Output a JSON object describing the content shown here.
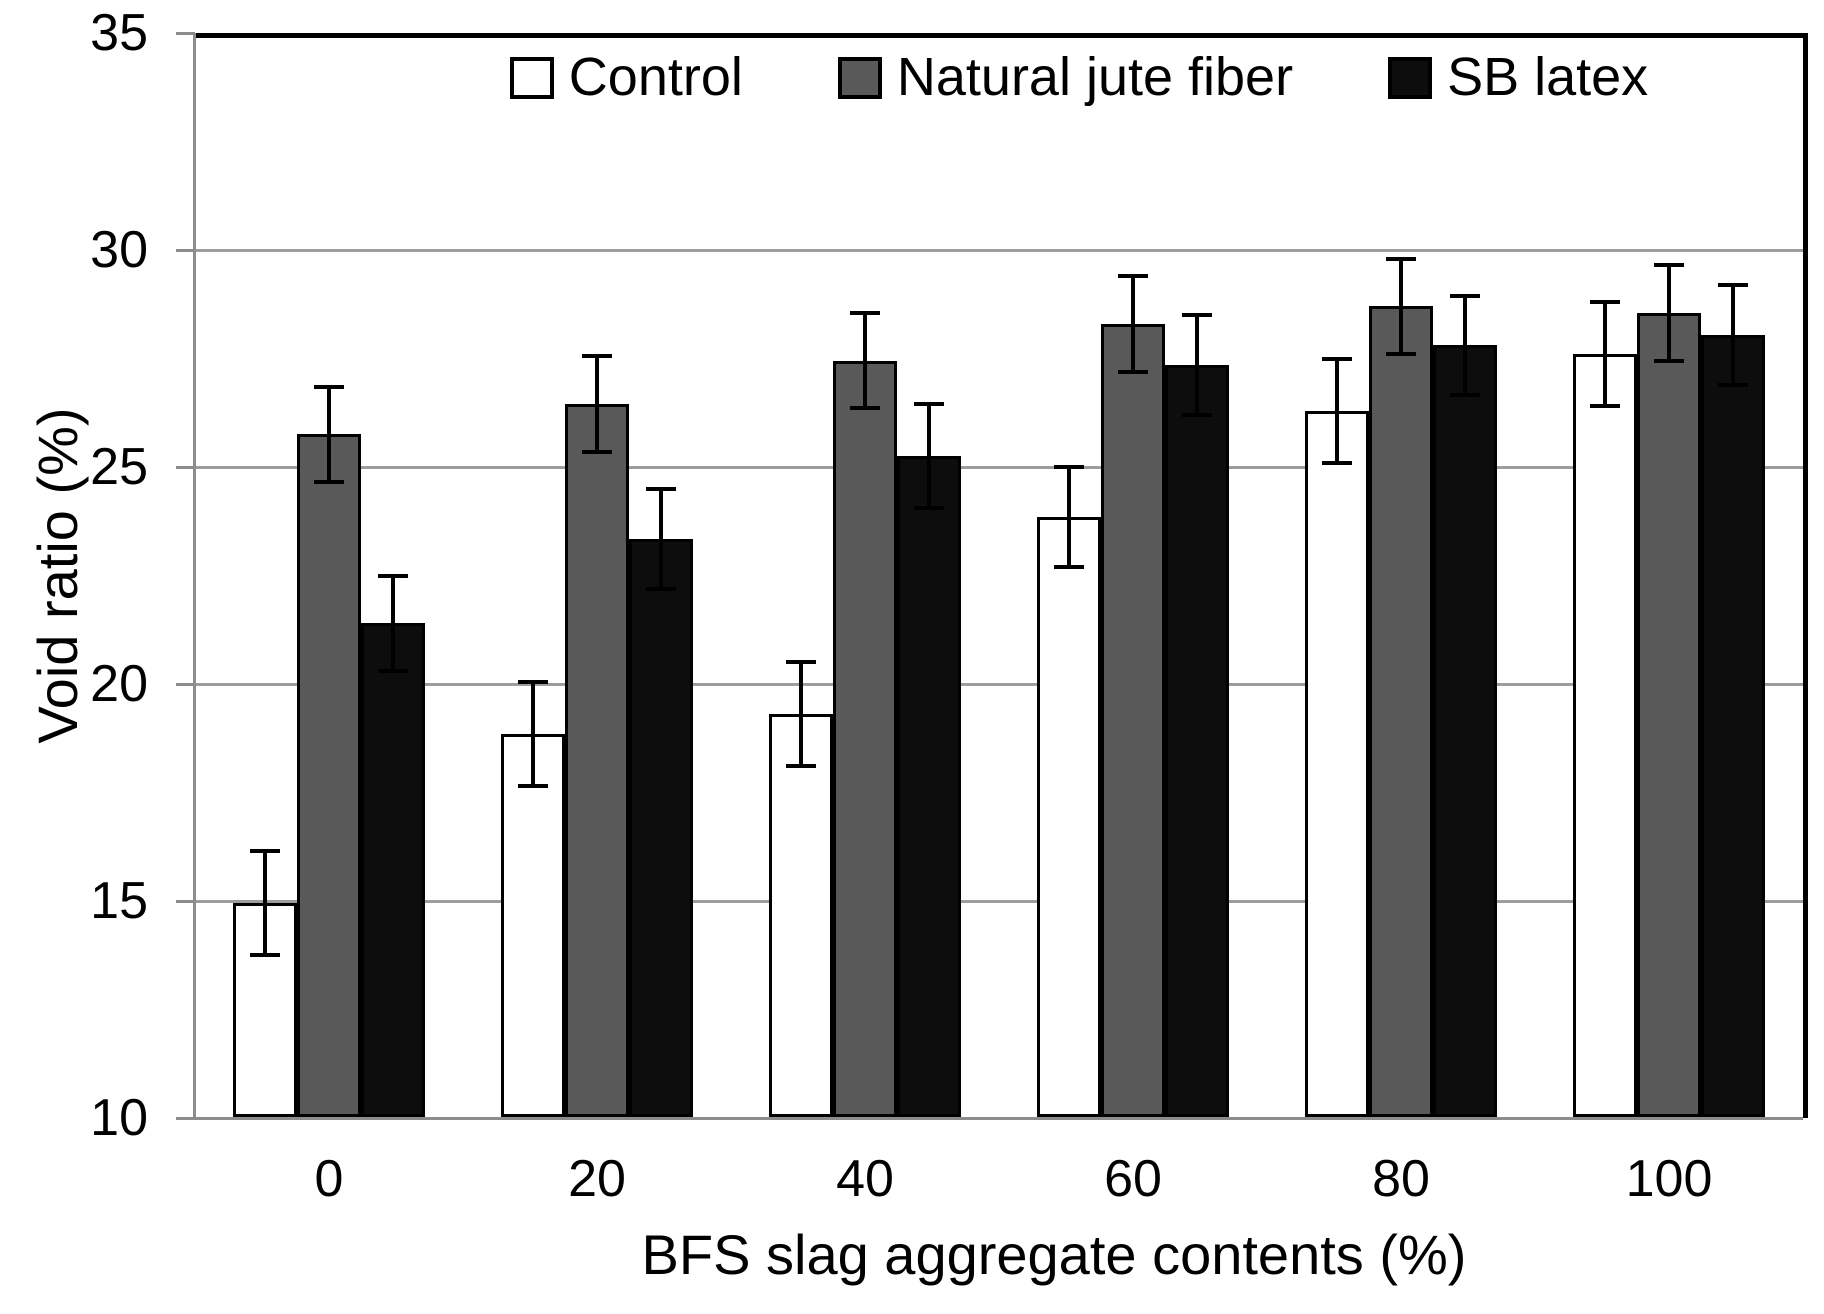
{
  "chart_data": {
    "type": "bar",
    "title": "",
    "xlabel": "BFS slag aggregate contents (%)",
    "ylabel": "Void ratio (%)",
    "categories": [
      "0",
      "20",
      "40",
      "60",
      "80",
      "100"
    ],
    "yticks": [
      10,
      15,
      20,
      25,
      30,
      35
    ],
    "ylim": [
      10,
      35
    ],
    "grid": "horizontal-only",
    "legend_position": "top-center-inside",
    "error_bars": "symmetric, black caps",
    "series": [
      {
        "name": "Control",
        "fill": "#ffffff",
        "values": [
          14.95,
          18.85,
          19.3,
          23.85,
          26.3,
          27.6
        ],
        "errors": [
          1.2,
          1.2,
          1.2,
          1.15,
          1.2,
          1.2
        ]
      },
      {
        "name": "Natural jute fiber",
        "fill": "#595959",
        "values": [
          25.75,
          26.45,
          27.45,
          28.3,
          28.7,
          28.55
        ],
        "errors": [
          1.1,
          1.1,
          1.1,
          1.1,
          1.1,
          1.1
        ]
      },
      {
        "name": "SB latex",
        "fill": "#0d0d0d",
        "values": [
          21.4,
          23.35,
          25.25,
          27.35,
          27.8,
          28.05
        ],
        "errors": [
          1.1,
          1.15,
          1.2,
          1.15,
          1.15,
          1.15
        ]
      }
    ],
    "colors": {
      "gridline": "#9d9d9d",
      "axis": "#8c8c8c",
      "plot_border": "#000000",
      "bar_border": "#000000",
      "error_bar": "#000000",
      "text": "#000000",
      "background": "#ffffff"
    }
  }
}
